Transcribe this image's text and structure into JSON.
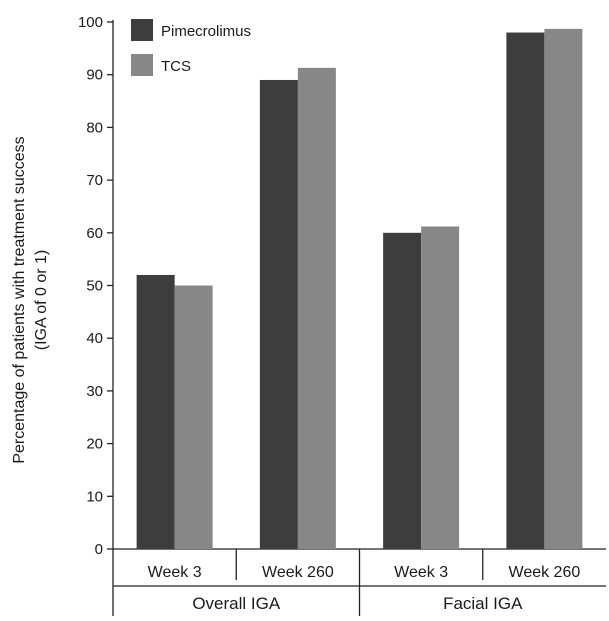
{
  "chart_data": {
    "type": "bar",
    "title": "",
    "ylabel": "Percentage of patients with treatment success",
    "ylabel2": "(IGA of 0 or 1)",
    "ylim": [
      0,
      100
    ],
    "yticks": [
      0,
      10,
      20,
      30,
      40,
      50,
      60,
      70,
      80,
      90,
      100
    ],
    "categories": [
      "Week 3",
      "Week 260",
      "Week 3",
      "Week 260"
    ],
    "groups": [
      {
        "label": "Overall IGA",
        "categories": [
          0,
          1
        ]
      },
      {
        "label": "Facial IGA",
        "categories": [
          2,
          3
        ]
      }
    ],
    "series": [
      {
        "name": "Pimecrolimus",
        "color": "#3d3d3d",
        "values": [
          52,
          89,
          60,
          98
        ]
      },
      {
        "name": "TCS",
        "color": "#878787",
        "values": [
          50,
          91.3,
          61.2,
          98.7
        ]
      }
    ],
    "legend_position": "top-left",
    "grid": false
  }
}
